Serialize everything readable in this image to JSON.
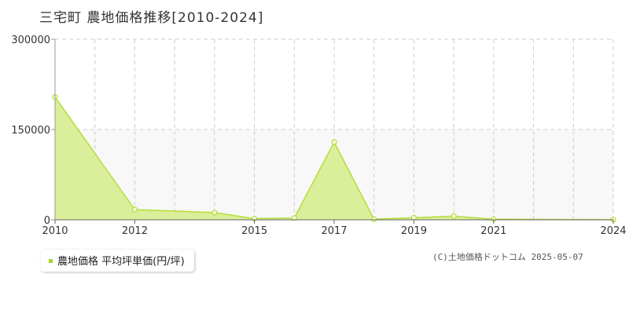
{
  "title": "三宅町 農地価格推移[2010-2024]",
  "legend": {
    "label": "農地価格 平均坪単価(円/坪)"
  },
  "copyright": "(C)土地価格ドットコム 2025-05-07",
  "colors": {
    "fill": "#d9ed93",
    "line": "#b5de3c",
    "marker_fill": "#f5fbe0",
    "grid": "#cccccc",
    "band": "#f8f8f8",
    "axis": "#999999"
  },
  "chart_data": {
    "type": "area",
    "x": [
      2010,
      2011,
      2012,
      2013,
      2014,
      2015,
      2016,
      2017,
      2018,
      2019,
      2020,
      2021,
      2022,
      2023,
      2024
    ],
    "x_ticks": [
      "2010",
      "2012",
      "2015",
      "2017",
      "2019",
      "2021",
      "2024"
    ],
    "y_ticks": [
      "0",
      "150000",
      "300000"
    ],
    "ylim": [
      0,
      300000
    ],
    "grid": true,
    "series": [
      {
        "points": [
          [
            2010,
            204000
          ],
          [
            2012,
            17000
          ],
          [
            2014,
            12000
          ],
          [
            2015,
            2000
          ],
          [
            2016,
            3000
          ],
          [
            2017,
            129000
          ],
          [
            2018,
            1000
          ],
          [
            2019,
            3500
          ],
          [
            2020,
            6000
          ],
          [
            2021,
            1000
          ],
          [
            2024,
            200
          ]
        ]
      }
    ]
  }
}
